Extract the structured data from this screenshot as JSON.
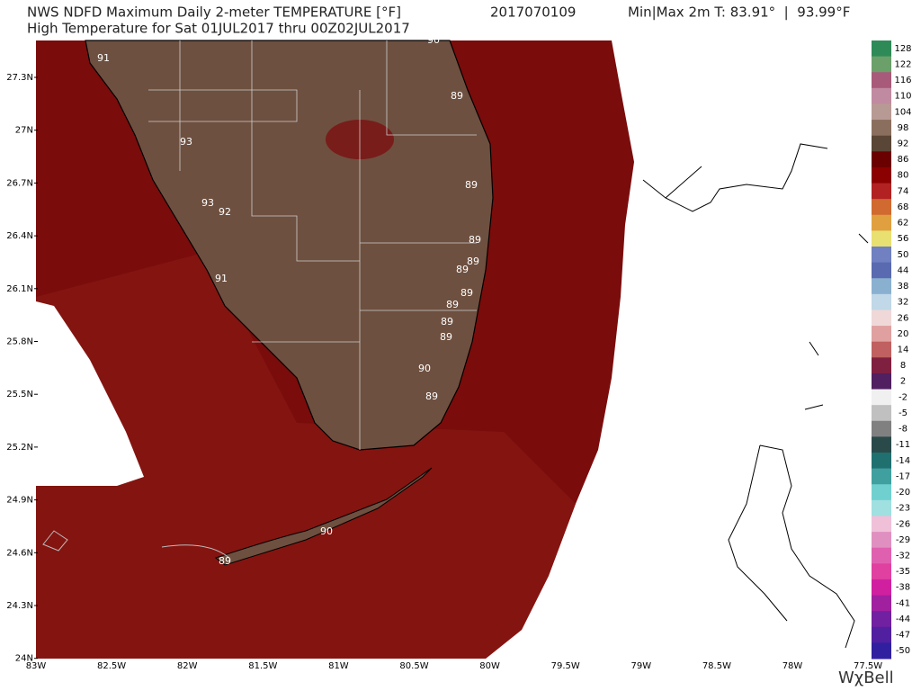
{
  "header": {
    "product": "NWS NDFD Maximum Daily 2-meter TEMPERATURE [°F]",
    "run": "2017070109",
    "minmax": "Min|Max 2m T: 83.91°  |  93.99°F",
    "subtitle": "High Temperature for Sat 01JUL2017 thru 00Z02JUL2017"
  },
  "lat_labels": [
    "27.3N",
    "27N",
    "26.7N",
    "26.4N",
    "26.1N",
    "25.8N",
    "25.5N",
    "25.2N",
    "24.9N",
    "24.6N",
    "24.3N",
    "24N"
  ],
  "lon_labels": [
    "83W",
    "82.5W",
    "82W",
    "81.5W",
    "81W",
    "80.5W",
    "80W",
    "79.5W",
    "79W",
    "78.5W",
    "78W",
    "77.5W"
  ],
  "stations": [
    "91",
    "90",
    "89",
    "93",
    "89",
    "93",
    "92",
    "89",
    "89",
    "89",
    "91",
    "89",
    "89",
    "89",
    "89",
    "90",
    "89",
    "90",
    "89"
  ],
  "colorbar": [
    {
      "label": "128",
      "color": "#2e8b57"
    },
    {
      "label": "122",
      "color": "#6ba06b"
    },
    {
      "label": "116",
      "color": "#a85a7a"
    },
    {
      "label": "110",
      "color": "#c08aa0"
    },
    {
      "label": "104",
      "color": "#b89a94"
    },
    {
      "label": "98",
      "color": "#8b6f5e"
    },
    {
      "label": "92",
      "color": "#5a4636"
    },
    {
      "label": "86",
      "color": "#6b0000"
    },
    {
      "label": "80",
      "color": "#8b0000"
    },
    {
      "label": "74",
      "color": "#b22222"
    },
    {
      "label": "68",
      "color": "#d06a30"
    },
    {
      "label": "62",
      "color": "#e0a040"
    },
    {
      "label": "56",
      "color": "#e8e070"
    },
    {
      "label": "50",
      "color": "#7080c0"
    },
    {
      "label": "44",
      "color": "#5a6ab0"
    },
    {
      "label": "38",
      "color": "#8ab0d0"
    },
    {
      "label": "32",
      "color": "#c0d8e8"
    },
    {
      "label": "26",
      "color": "#f0d8d8"
    },
    {
      "label": "20",
      "color": "#e0a0a0"
    },
    {
      "label": "14",
      "color": "#c06060"
    },
    {
      "label": "8",
      "color": "#802040"
    },
    {
      "label": "2",
      "color": "#502060"
    },
    {
      "label": "-2",
      "color": "#f0f0f0"
    },
    {
      "label": "-5",
      "color": "#c0c0c0"
    },
    {
      "label": "-8",
      "color": "#808080"
    },
    {
      "label": "-11",
      "color": "#2a4a4a"
    },
    {
      "label": "-14",
      "color": "#207070"
    },
    {
      "label": "-17",
      "color": "#40a0a0"
    },
    {
      "label": "-20",
      "color": "#70d0d0"
    },
    {
      "label": "-23",
      "color": "#a0e0e0"
    },
    {
      "label": "-26",
      "color": "#f0c0d8"
    },
    {
      "label": "-29",
      "color": "#e090c0"
    },
    {
      "label": "-32",
      "color": "#e060b0"
    },
    {
      "label": "-35",
      "color": "#e040a0"
    },
    {
      "label": "-38",
      "color": "#d020a0"
    },
    {
      "label": "-41",
      "color": "#a020a0"
    },
    {
      "label": "-44",
      "color": "#7020a0"
    },
    {
      "label": "-47",
      "color": "#5020a0"
    },
    {
      "label": "-50",
      "color": "#3020a0"
    }
  ],
  "logo": "WχBell"
}
